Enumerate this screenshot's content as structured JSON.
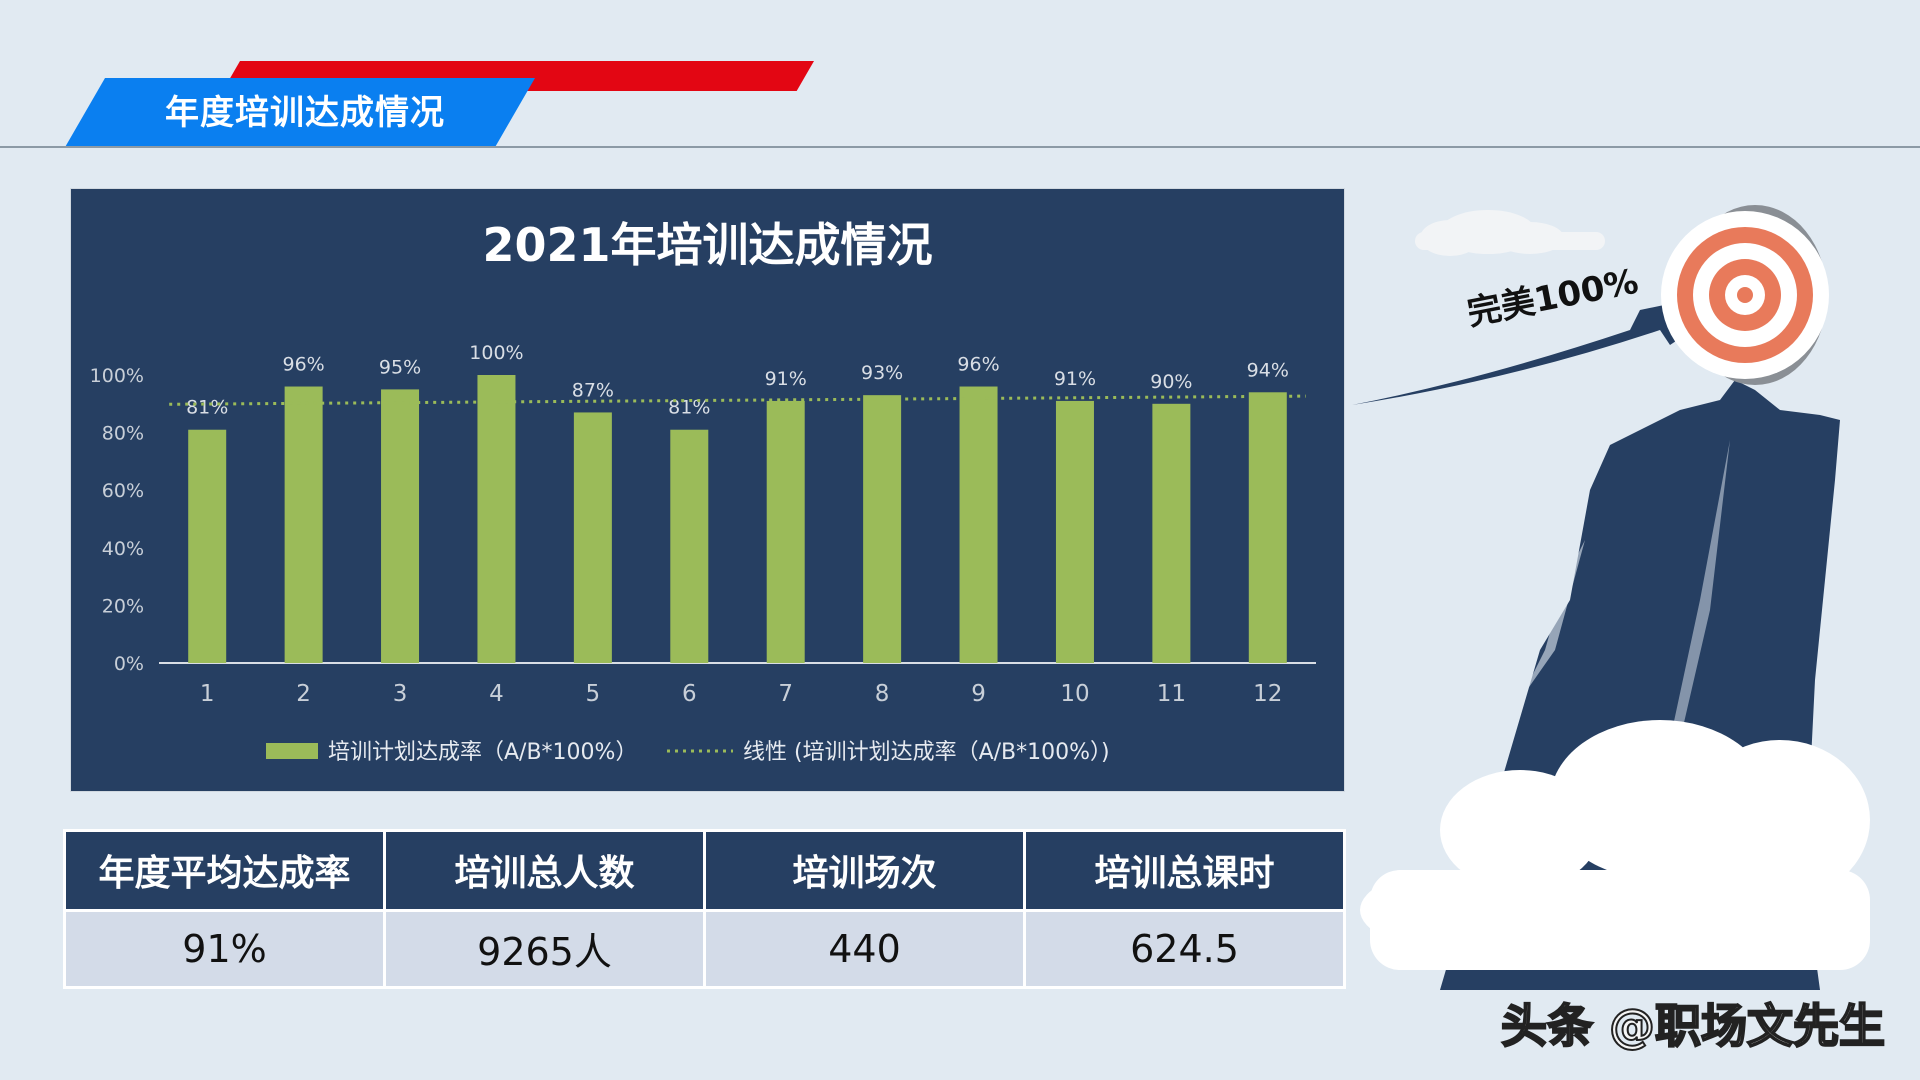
{
  "header": {
    "title": "年度培训达成情况"
  },
  "chart_data": {
    "type": "bar",
    "title": "2021年培训达成情况",
    "categories": [
      "1",
      "2",
      "3",
      "4",
      "5",
      "6",
      "7",
      "8",
      "9",
      "10",
      "11",
      "12"
    ],
    "series": [
      {
        "name": "培训计划达成率（A/B*100%）",
        "values": [
          81,
          96,
          95,
          100,
          87,
          81,
          91,
          93,
          96,
          91,
          90,
          94
        ]
      }
    ],
    "data_labels": [
      "81%",
      "96%",
      "95%",
      "100%",
      "87%",
      "81%",
      "91%",
      "93%",
      "96%",
      "91%",
      "90%",
      "94%"
    ],
    "trendline": {
      "name": "线性 (培训计划达成率（A/B*100%）)",
      "type": "linear"
    },
    "yticks": [
      "0%",
      "20%",
      "40%",
      "60%",
      "80%",
      "100%"
    ],
    "ylim": [
      0,
      100
    ],
    "grid": false,
    "legend": "bottom",
    "colors": {
      "bar": "#9bbb59",
      "trend": "#9bbb59",
      "panel": "#263f62"
    }
  },
  "stats": {
    "headers": [
      "年度平均达成率",
      "培训总人数",
      "培训场次",
      "培训总课时"
    ],
    "values": [
      "91%",
      "9265人",
      "440",
      "624.5"
    ]
  },
  "decoration": {
    "label": "完美100%"
  },
  "watermark": "头条 @职场文先生"
}
